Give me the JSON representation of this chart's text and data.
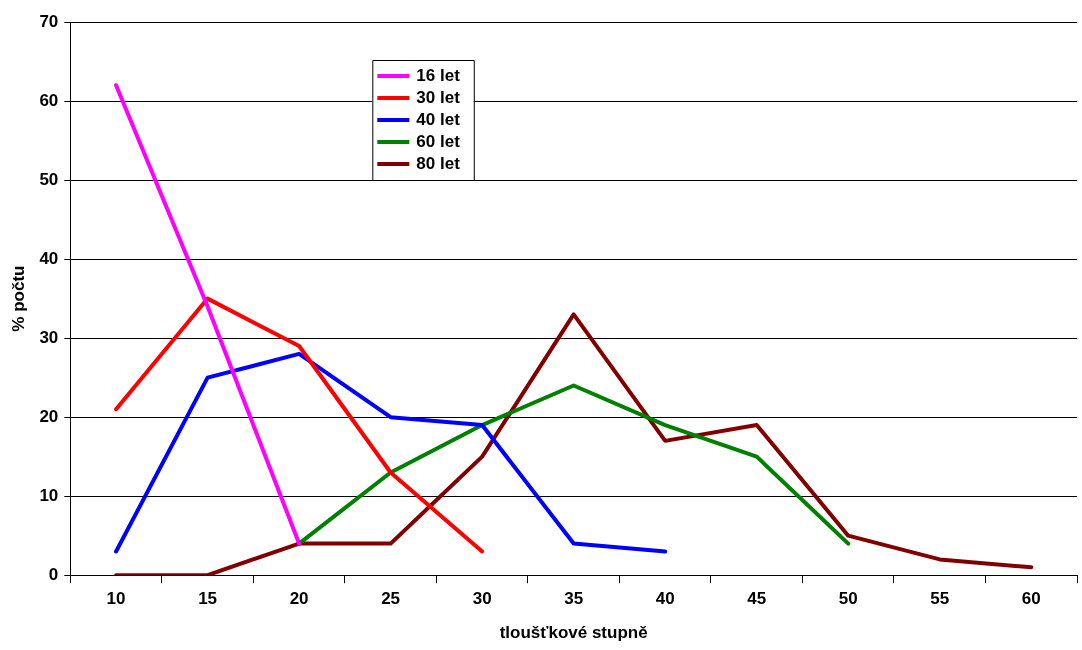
{
  "chart_data": {
    "type": "line",
    "xlabel": "tloušťkové stupně",
    "ylabel": "% počtu",
    "categories": [
      "10",
      "15",
      "20",
      "25",
      "30",
      "35",
      "40",
      "45",
      "50",
      "55",
      "60"
    ],
    "series": [
      {
        "name": "16 let",
        "color": "#ff00ff",
        "values": [
          62,
          34,
          4,
          null,
          null,
          null,
          null,
          null,
          null,
          null,
          null
        ]
      },
      {
        "name": "30 let",
        "color": "#ff0000",
        "values": [
          21,
          35,
          29,
          13,
          3,
          null,
          null,
          null,
          null,
          null,
          null
        ]
      },
      {
        "name": "40 let",
        "color": "#0000ff",
        "values": [
          3,
          25,
          28,
          20,
          19,
          4,
          3,
          null,
          null,
          null,
          null
        ]
      },
      {
        "name": "60 let",
        "color": "#008000",
        "values": [
          null,
          null,
          4,
          13,
          19,
          24,
          19,
          15,
          4,
          null,
          null
        ]
      },
      {
        "name": "80 let",
        "color": "#800000",
        "values": [
          0,
          0,
          4,
          4,
          15,
          33,
          17,
          19,
          5,
          2,
          1
        ]
      }
    ],
    "ylim": [
      0,
      70
    ],
    "yticks": [
      0,
      10,
      20,
      30,
      40,
      50,
      60,
      70
    ],
    "grid": "y",
    "legend": "top left",
    "marker": "none",
    "line_style": "solid"
  }
}
